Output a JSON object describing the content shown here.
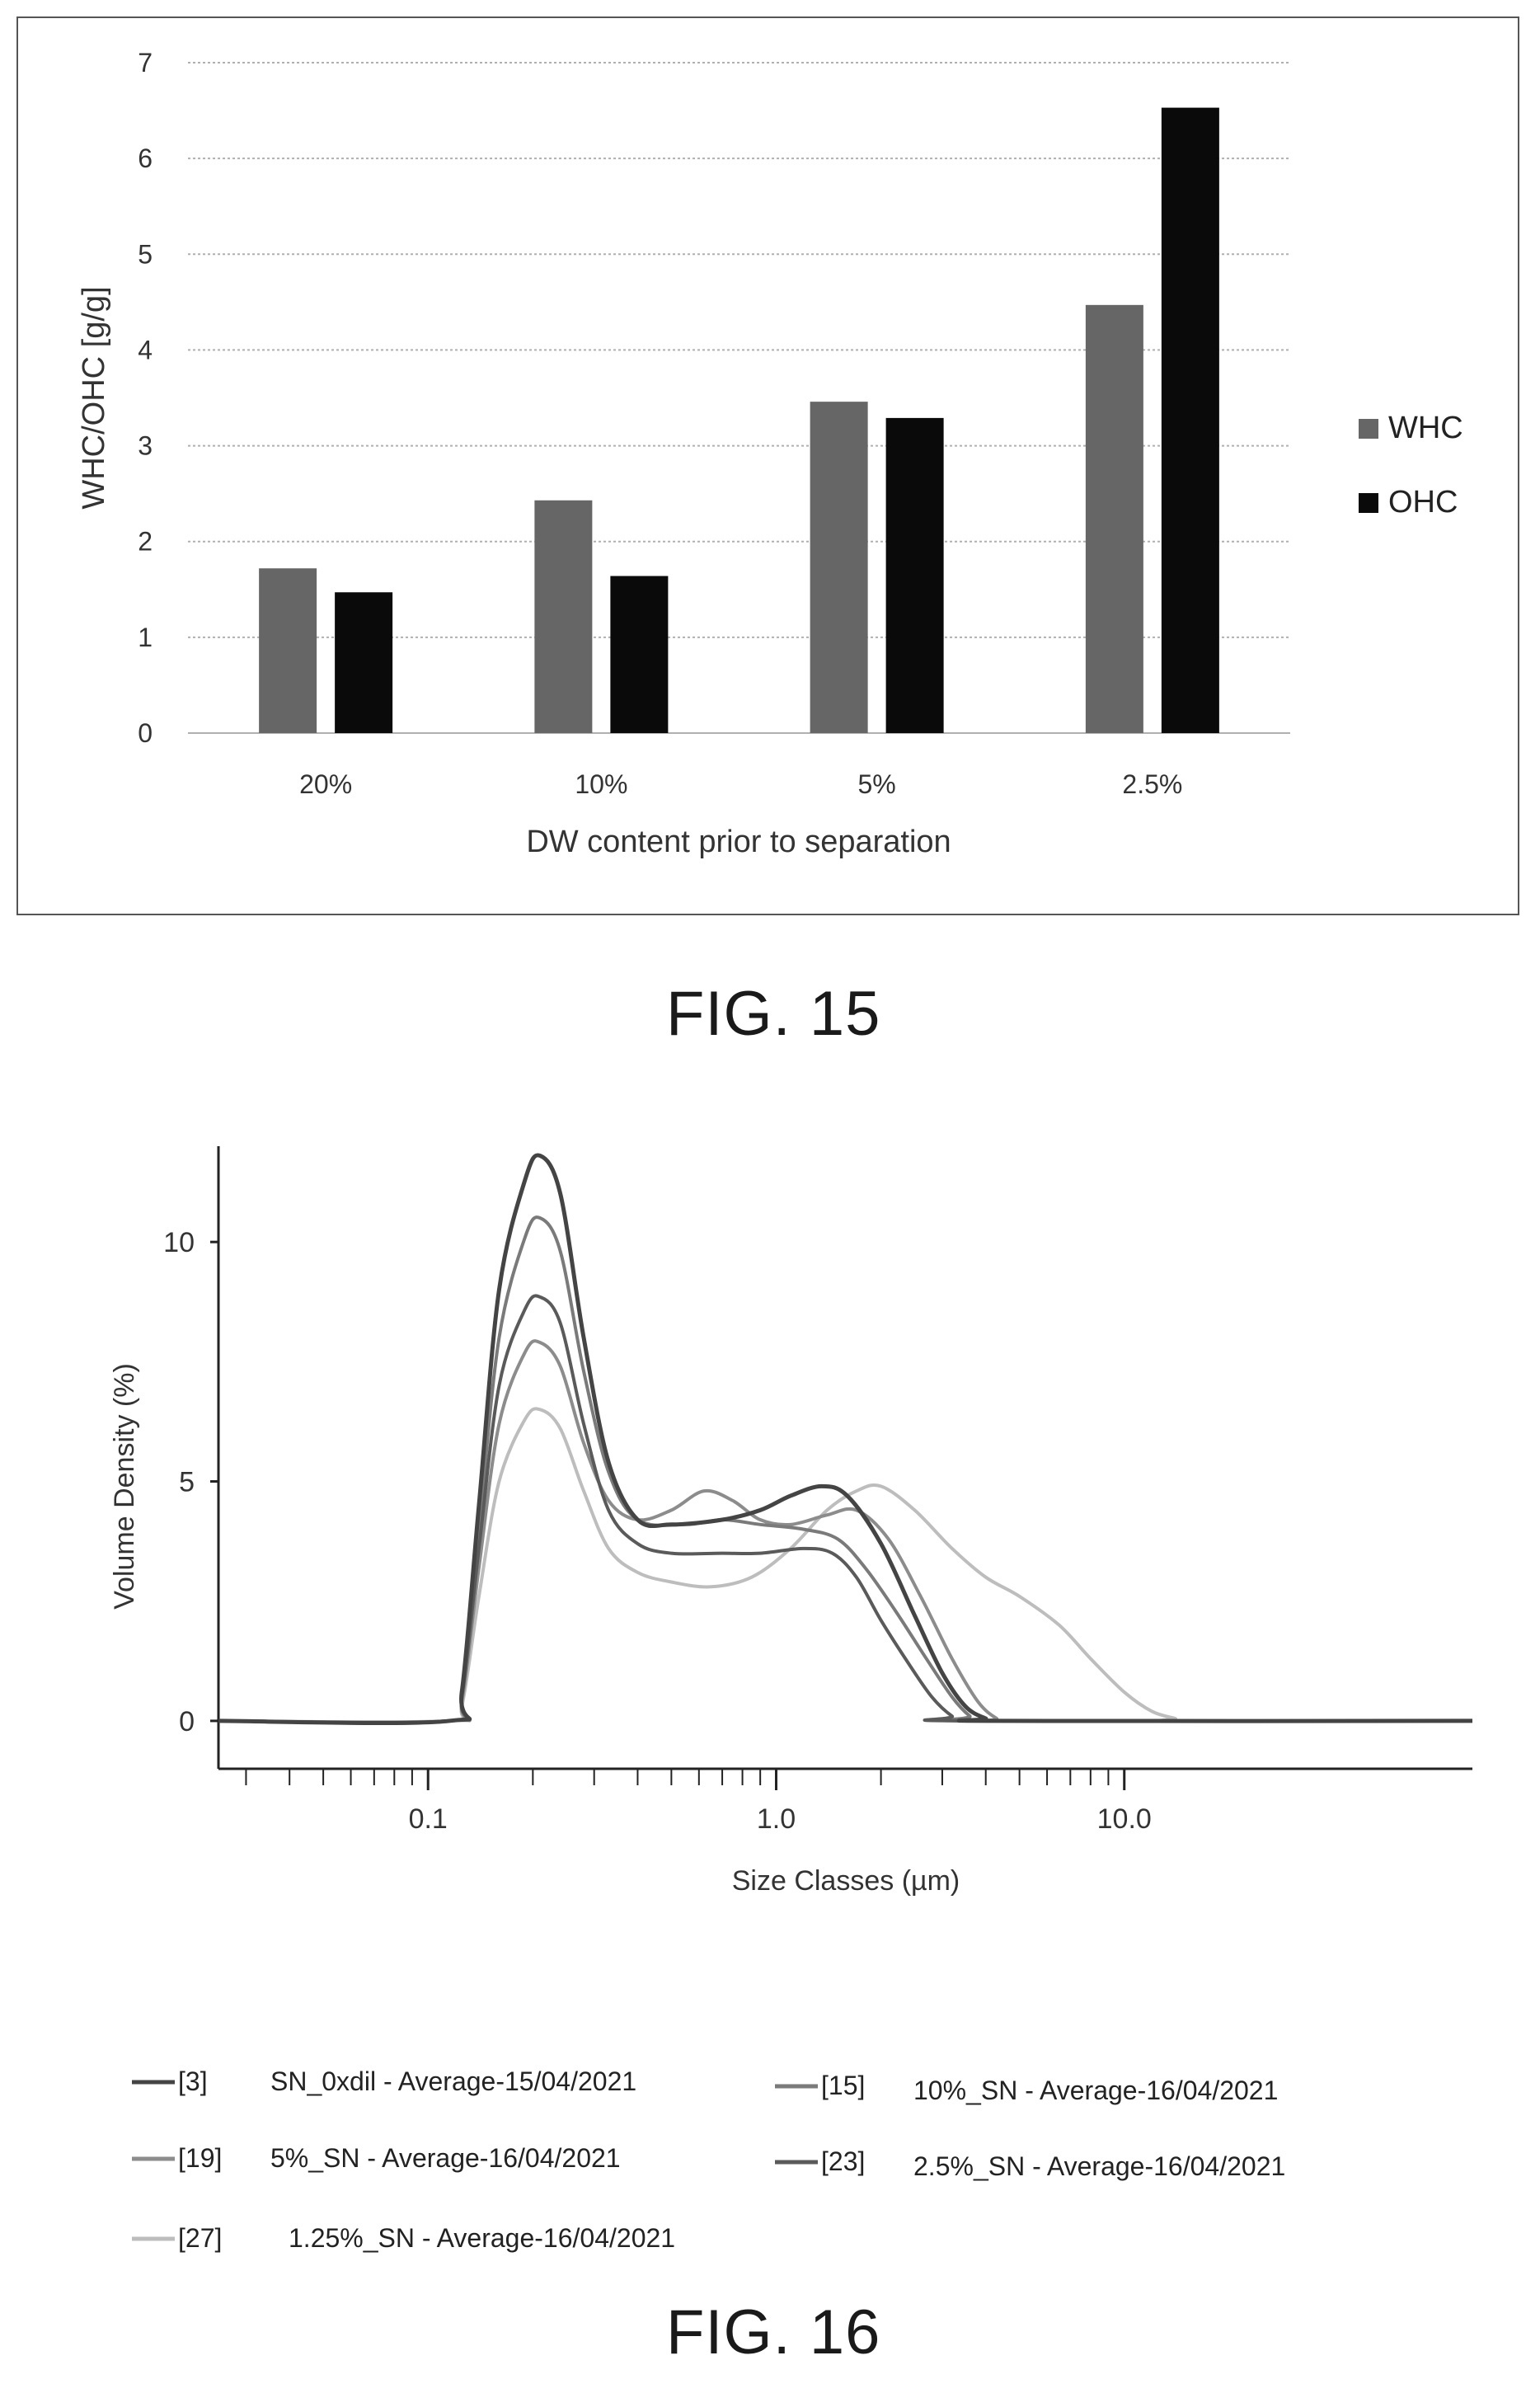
{
  "chart_data": [
    {
      "type": "bar",
      "figure_caption": "FIG. 15",
      "ylabel": "WHC/OHC [g/g]",
      "xlabel": "DW content prior to separation",
      "categories": [
        "20%",
        "10%",
        "5%",
        "2.5%"
      ],
      "ylim": [
        0,
        7
      ],
      "yticks": [
        "0",
        "1",
        "2",
        "3",
        "4",
        "5",
        "6",
        "7"
      ],
      "grid": true,
      "legend_position": "right",
      "series": [
        {
          "name": "WHC",
          "values": [
            1.72,
            2.43,
            3.46,
            4.47
          ],
          "color": "#666666"
        },
        {
          "name": "OHC",
          "values": [
            1.47,
            1.64,
            3.29,
            6.53
          ],
          "color": "#0a0a0a"
        }
      ]
    },
    {
      "type": "line",
      "figure_caption": "FIG. 16",
      "xlabel": "Size Classes (µm)",
      "ylabel": "Volume Density (%)",
      "x_scale": "log",
      "xlim": [
        0.025,
        100
      ],
      "ylim": [
        -1,
        12
      ],
      "xticks": [
        "0.1",
        "1.0",
        "10.0"
      ],
      "yticks": [
        "0",
        "5",
        "10"
      ],
      "legend_position": "bottom",
      "series": [
        {
          "id": "[3]",
          "name": "SN_0xdil - Average-15/04/2021",
          "color": "#444444",
          "points": [
            [
              0.02,
              0
            ],
            [
              0.115,
              0
            ],
            [
              0.125,
              0.6
            ],
            [
              0.14,
              4.5
            ],
            [
              0.16,
              9
            ],
            [
              0.19,
              11.3
            ],
            [
              0.21,
              11.8
            ],
            [
              0.24,
              11
            ],
            [
              0.28,
              8
            ],
            [
              0.33,
              5.4
            ],
            [
              0.4,
              4.2
            ],
            [
              0.5,
              4.1
            ],
            [
              0.7,
              4.2
            ],
            [
              0.9,
              4.4
            ],
            [
              1.1,
              4.7
            ],
            [
              1.35,
              4.9
            ],
            [
              1.6,
              4.7
            ],
            [
              2.0,
              3.7
            ],
            [
              2.5,
              2.2
            ],
            [
              3.0,
              1.0
            ],
            [
              3.5,
              0.3
            ],
            [
              4.0,
              0.05
            ],
            [
              4.3,
              0
            ],
            [
              100,
              0
            ]
          ]
        },
        {
          "id": "[15]",
          "name": "10%_SN - Average-16/04/2021",
          "color": "#7a7a7a",
          "points": [
            [
              0.02,
              0
            ],
            [
              0.115,
              0
            ],
            [
              0.125,
              0.5
            ],
            [
              0.14,
              4
            ],
            [
              0.16,
              8
            ],
            [
              0.19,
              10.1
            ],
            [
              0.21,
              10.5
            ],
            [
              0.24,
              9.8
            ],
            [
              0.28,
              7.3
            ],
            [
              0.33,
              5.2
            ],
            [
              0.4,
              4.2
            ],
            [
              0.55,
              4.1
            ],
            [
              0.7,
              4.2
            ],
            [
              0.9,
              4.1
            ],
            [
              1.2,
              4.0
            ],
            [
              1.5,
              3.8
            ],
            [
              1.8,
              3.2
            ],
            [
              2.2,
              2.3
            ],
            [
              2.7,
              1.3
            ],
            [
              3.2,
              0.5
            ],
            [
              3.6,
              0.1
            ],
            [
              3.9,
              0
            ],
            [
              100,
              0
            ]
          ]
        },
        {
          "id": "[19]",
          "name": "5%_SN - Average-16/04/2021",
          "color": "#8c8c8c",
          "points": [
            [
              0.02,
              0
            ],
            [
              0.115,
              0
            ],
            [
              0.125,
              0.4
            ],
            [
              0.14,
              3.2
            ],
            [
              0.16,
              6.2
            ],
            [
              0.19,
              7.7
            ],
            [
              0.21,
              7.9
            ],
            [
              0.24,
              7.4
            ],
            [
              0.28,
              5.8
            ],
            [
              0.33,
              4.6
            ],
            [
              0.4,
              4.2
            ],
            [
              0.5,
              4.4
            ],
            [
              0.62,
              4.8
            ],
            [
              0.75,
              4.6
            ],
            [
              0.9,
              4.2
            ],
            [
              1.1,
              4.1
            ],
            [
              1.4,
              4.3
            ],
            [
              1.7,
              4.4
            ],
            [
              2.1,
              3.8
            ],
            [
              2.6,
              2.6
            ],
            [
              3.2,
              1.3
            ],
            [
              3.8,
              0.4
            ],
            [
              4.3,
              0.05
            ],
            [
              4.6,
              0
            ],
            [
              100,
              0
            ]
          ]
        },
        {
          "id": "[23]",
          "name": "2.5%_SN - Average-16/04/2021",
          "color": "#5a5a5a",
          "points": [
            [
              0.02,
              0
            ],
            [
              0.115,
              0
            ],
            [
              0.125,
              0.5
            ],
            [
              0.14,
              3.6
            ],
            [
              0.16,
              7.0
            ],
            [
              0.19,
              8.6
            ],
            [
              0.21,
              8.85
            ],
            [
              0.24,
              8.3
            ],
            [
              0.28,
              6.2
            ],
            [
              0.33,
              4.4
            ],
            [
              0.4,
              3.7
            ],
            [
              0.5,
              3.5
            ],
            [
              0.7,
              3.5
            ],
            [
              0.9,
              3.5
            ],
            [
              1.2,
              3.6
            ],
            [
              1.45,
              3.5
            ],
            [
              1.7,
              3.0
            ],
            [
              2.0,
              2.1
            ],
            [
              2.4,
              1.2
            ],
            [
              2.8,
              0.5
            ],
            [
              3.2,
              0.1
            ],
            [
              3.5,
              0
            ],
            [
              100,
              0
            ]
          ]
        },
        {
          "id": "[27]",
          "name": "1.25%_SN - Average-16/04/2021",
          "color": "#bdbdbd",
          "points": [
            [
              0.02,
              0
            ],
            [
              0.115,
              0
            ],
            [
              0.125,
              0.3
            ],
            [
              0.14,
              2.6
            ],
            [
              0.16,
              5.0
            ],
            [
              0.19,
              6.3
            ],
            [
              0.21,
              6.5
            ],
            [
              0.24,
              6.1
            ],
            [
              0.28,
              4.8
            ],
            [
              0.33,
              3.6
            ],
            [
              0.4,
              3.1
            ],
            [
              0.5,
              2.9
            ],
            [
              0.65,
              2.8
            ],
            [
              0.85,
              3.0
            ],
            [
              1.1,
              3.6
            ],
            [
              1.4,
              4.4
            ],
            [
              1.7,
              4.8
            ],
            [
              2.0,
              4.9
            ],
            [
              2.5,
              4.4
            ],
            [
              3.2,
              3.6
            ],
            [
              4.0,
              3.0
            ],
            [
              5.0,
              2.6
            ],
            [
              6.5,
              2.0
            ],
            [
              8.0,
              1.3
            ],
            [
              10,
              0.6
            ],
            [
              12,
              0.2
            ],
            [
              14,
              0.05
            ],
            [
              15,
              0
            ],
            [
              100,
              0
            ]
          ]
        }
      ]
    }
  ]
}
